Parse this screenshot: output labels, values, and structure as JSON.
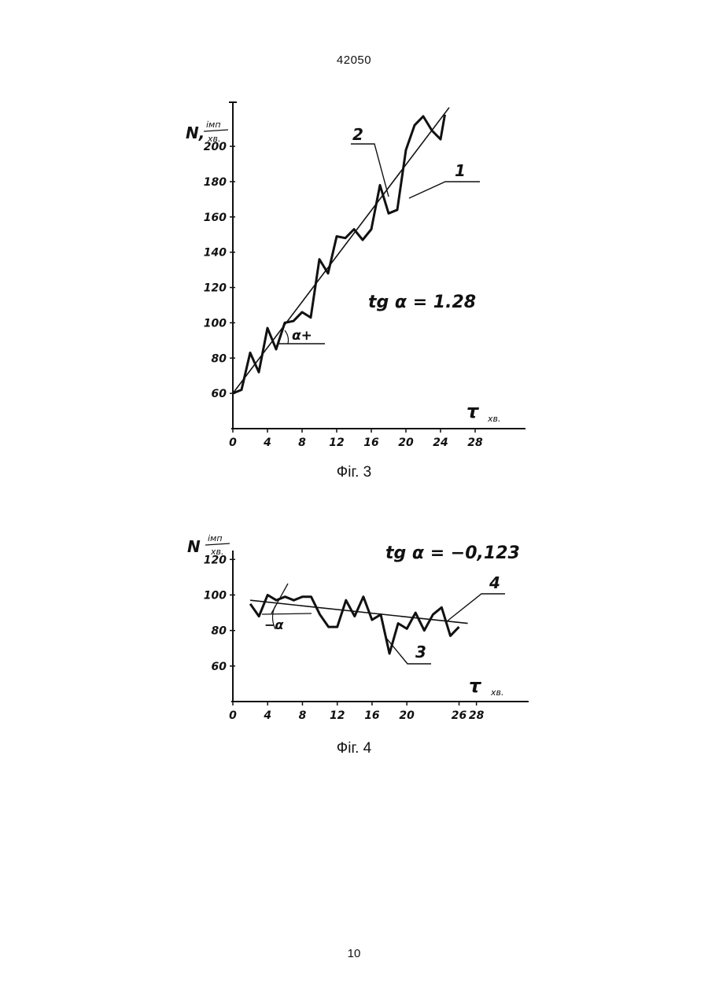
{
  "header": {
    "doc_number": "42050"
  },
  "footer": {
    "page_number": "10"
  },
  "chart_data": [
    {
      "type": "line",
      "caption": "Фіг. 3",
      "ylabel": "N, імп/хв.",
      "ylabel_main": "N,",
      "ylabel_unit_top": "імп",
      "ylabel_unit_bottom": "хв.",
      "xlabel": "τ хв.",
      "xlabel_main": "τ",
      "xlabel_unit": "хв.",
      "x_ticks": [
        "0",
        "4",
        "8",
        "12",
        "16",
        "20",
        "24",
        "28"
      ],
      "y_ticks": [
        "60",
        "80",
        "100",
        "120",
        "140",
        "160",
        "180",
        "200"
      ],
      "xlim": [
        0,
        34
      ],
      "ylim": [
        40,
        225
      ],
      "annotation_formula": "tg α = 1.28",
      "angle_label": "α+",
      "series": [
        {
          "name": "2",
          "x": [
            0,
            1,
            2,
            3,
            4,
            5,
            6,
            7,
            8,
            9,
            10,
            11,
            12,
            13,
            14,
            15,
            16,
            17,
            18,
            19,
            20,
            21,
            22,
            23,
            24,
            24.5
          ],
          "y": [
            60,
            62,
            83,
            72,
            97,
            85,
            100,
            101,
            106,
            103,
            136,
            128,
            149,
            148,
            153,
            147,
            153,
            178,
            162,
            164,
            198,
            212,
            217,
            209,
            204,
            218
          ]
        },
        {
          "name": "1",
          "x": [
            0,
            25
          ],
          "y": [
            60,
            222
          ]
        }
      ]
    },
    {
      "type": "line",
      "caption": "Фіг. 4",
      "ylabel": "N імп/хв.",
      "ylabel_main": "N",
      "ylabel_unit_top": "імп",
      "ylabel_unit_bottom": "хв.",
      "xlabel": "τ хв.",
      "xlabel_main": "τ",
      "xlabel_unit": "хв.",
      "x_ticks": [
        "0",
        "4",
        "8",
        "12",
        "16",
        "20",
        "26",
        "28"
      ],
      "y_ticks": [
        "60",
        "80",
        "100",
        "120"
      ],
      "xlim": [
        0,
        34
      ],
      "ylim": [
        40,
        125
      ],
      "annotation_formula": "tg α = −0,123",
      "angle_label": "−α",
      "series": [
        {
          "name": "3",
          "x": [
            2,
            3,
            4,
            5,
            6,
            7,
            8,
            9,
            10,
            11,
            12,
            13,
            14,
            15,
            16,
            17,
            18,
            19,
            20,
            21,
            22,
            23,
            24,
            25,
            26
          ],
          "y": [
            95,
            88,
            100,
            97,
            99,
            97,
            99,
            99,
            89,
            82,
            82,
            97,
            88,
            99,
            86,
            89,
            67,
            84,
            81,
            90,
            80,
            89,
            93,
            77,
            82
          ]
        },
        {
          "name": "4",
          "x": [
            2,
            27
          ],
          "y": [
            97,
            84
          ]
        }
      ]
    }
  ]
}
